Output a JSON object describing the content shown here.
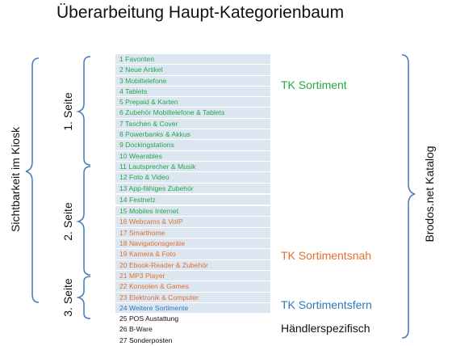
{
  "title": "Überarbeitung Haupt-Kategorienbaum",
  "left_label": "Sichtbarkeit im Kiosk",
  "right_label": "Brodos.net Katalog",
  "pages": [
    {
      "label": "1. Seite"
    },
    {
      "label": "2. Seite"
    },
    {
      "label": "3. Seite"
    }
  ],
  "groups": {
    "sortiment": {
      "label": "TK Sortiment",
      "color": "#27a64a"
    },
    "sortimentsnah": {
      "label": "TK Sortimentsnah",
      "color": "#e0702b"
    },
    "sortimentsfern": {
      "label": "TK Sortimentsfern",
      "color": "#2e78b8"
    },
    "haendler": {
      "label": "Händlerspezifisch",
      "color": "#111111"
    }
  },
  "categories": [
    {
      "text": "1 Favoriten",
      "group": "sortiment"
    },
    {
      "text": "2  Neue Artikel",
      "group": "sortiment"
    },
    {
      "text": "3  Mobiltelefone",
      "group": "sortiment"
    },
    {
      "text": "4 Tablets",
      "group": "sortiment"
    },
    {
      "text": "5 Prepaid & Karten",
      "group": "sortiment"
    },
    {
      "text": "6 Zubehör Mobiltelefone & Tablets",
      "group": "sortiment"
    },
    {
      "text": "7 Taschen  & Cover",
      "group": "sortiment"
    },
    {
      "text": "8 Powerbanks & Akkus",
      "group": "sortiment"
    },
    {
      "text": "9 Dockingstations",
      "group": "sortiment"
    },
    {
      "text": "10 Wearables",
      "group": "sortiment"
    },
    {
      "text": "11 Lautsprecher & Musik",
      "group": "sortiment"
    },
    {
      "text": "12 Foto & Video",
      "group": "sortiment"
    },
    {
      "text": "13 App-fähiges Zubehör",
      "group": "sortiment"
    },
    {
      "text": "14 Festnetz",
      "group": "sortiment"
    },
    {
      "text": "15 Mobiles  Internet",
      "group": "sortiment"
    },
    {
      "text": "16 Webcams & VoIP",
      "group": "sortimentsnah"
    },
    {
      "text": "17 Smarthome",
      "group": "sortimentsnah"
    },
    {
      "text": "18 Navigationsgeräte",
      "group": "sortimentsnah"
    },
    {
      "text": "19 Kamera & Foto",
      "group": "sortimentsnah"
    },
    {
      "text": "20 Ebook-Reader & Zubehör",
      "group": "sortimentsnah"
    },
    {
      "text": "21 MP3 Player",
      "group": "sortimentsnah"
    },
    {
      "text": "22 Konsolen & Games",
      "group": "sortimentsnah"
    },
    {
      "text": "23 Elektronik & Computer",
      "group": "sortimentsnah"
    },
    {
      "text": "24 Weitere Sortimente",
      "group": "sortimentsfern"
    },
    {
      "text": "25 POS Austattung",
      "group": "haendler"
    },
    {
      "text": "26 B-Ware",
      "group": "haendler"
    },
    {
      "text": "27 Sonderposten",
      "group": "haendler"
    }
  ]
}
